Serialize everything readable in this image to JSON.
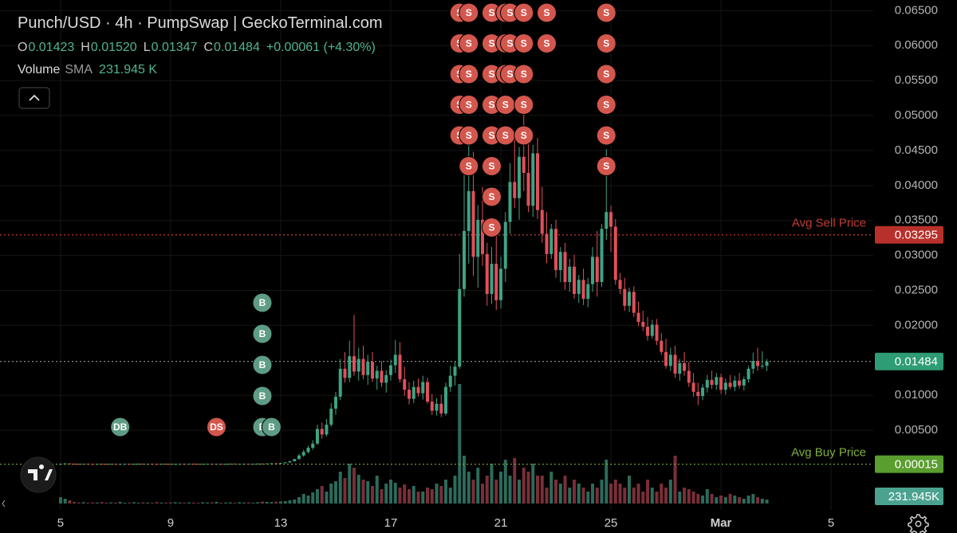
{
  "header": {
    "title": "Punch/USD · 4h · PumpSwap | GeckoTerminal.com",
    "ohlc": [
      {
        "key": "O",
        "value": "0.01423"
      },
      {
        "key": "H",
        "value": "0.01520"
      },
      {
        "key": "L",
        "value": "0.01347"
      },
      {
        "key": "C",
        "value": "0.01484"
      }
    ],
    "change": "+0.00061 (+4.30%)",
    "volume_name": "Volume",
    "sma_name": "SMA",
    "sma_value": "231.945 K"
  },
  "chart_data": {
    "type": "candlestick",
    "up_color": "#3fa384",
    "down_color": "#e0505a",
    "volume_up_color": "#2c6b5b",
    "volume_down_color": "#7a2f38",
    "grid": true,
    "xlim": [
      -13.2,
      177.2
    ],
    "xticks": [
      {
        "value": 0,
        "label": "5"
      },
      {
        "value": 24,
        "label": "9"
      },
      {
        "value": 48,
        "label": "13"
      },
      {
        "value": 72,
        "label": "17"
      },
      {
        "value": 96,
        "label": "21"
      },
      {
        "value": 120,
        "label": "25"
      },
      {
        "value": 144,
        "label": "Mar",
        "bold": true
      },
      {
        "value": 168,
        "label": "5"
      }
    ],
    "ylim": [
      -0.00638,
      0.06652
    ],
    "yticks": [
      {
        "value": 0.005,
        "label": "0.00500"
      },
      {
        "value": 0.01,
        "label": "0.01000"
      },
      {
        "value": 0.02,
        "label": "0.02000"
      },
      {
        "value": 0.025,
        "label": "0.02500"
      },
      {
        "value": 0.03,
        "label": "0.03000"
      },
      {
        "value": 0.035,
        "label": "0.03500"
      },
      {
        "value": 0.04,
        "label": "0.04000"
      },
      {
        "value": 0.045,
        "label": "0.04500"
      },
      {
        "value": 0.05,
        "label": "0.05000"
      },
      {
        "value": 0.055,
        "label": "0.05500"
      },
      {
        "value": 0.06,
        "label": "0.06000"
      },
      {
        "value": 0.065,
        "label": "0.06500"
      }
    ],
    "vlim": [
      0,
      16300000
    ],
    "volume_sma": 231945,
    "volume_sma_label": "231.945K",
    "volume_sma_color": "#4ba38f",
    "price_lines": [
      {
        "name": "Avg Sell Price",
        "value": 0.03295,
        "label": "0.03295",
        "color": "#c23a33",
        "badge_color": "#b8302b"
      },
      {
        "value": 0.01484,
        "label": "0.01484",
        "color": "#9a9a9a",
        "badge_color": "#2e9c74"
      },
      {
        "name": "Avg Buy Price",
        "value": 0.00015,
        "label": "0.00015",
        "color": "#7fb13a",
        "badge_color": "#5a9e2f"
      }
    ],
    "markers": [
      {
        "label": "DB",
        "index": 13,
        "count": 1,
        "stack": "bottom",
        "color": "#5e9c85"
      },
      {
        "label": "DS",
        "index": 34,
        "count": 1,
        "stack": "bottom",
        "color": "#d4574e"
      },
      {
        "label": "B",
        "index": 44,
        "count": 5,
        "stack": "bottom",
        "color": "#5e9c85"
      },
      {
        "label": "B",
        "index": 46,
        "count": 1,
        "stack": "bottom",
        "color": "#5e9c85"
      },
      {
        "label": "S",
        "index": 87,
        "count": 5,
        "stack": "top",
        "color": "#d4574e"
      },
      {
        "label": "S",
        "index": 89,
        "count": 6,
        "stack": "top",
        "color": "#d4574e"
      },
      {
        "label": "S",
        "index": 94,
        "count": 8,
        "stack": "top",
        "color": "#d4574e"
      },
      {
        "label": "S",
        "index": 97,
        "count": 5,
        "stack": "top",
        "color": "#d4574e"
      },
      {
        "label": "S",
        "index": 98,
        "count": 3,
        "stack": "top",
        "color": "#d4574e"
      },
      {
        "label": "S",
        "index": 101,
        "count": 5,
        "stack": "top",
        "color": "#d4574e"
      },
      {
        "label": "S",
        "index": 106,
        "count": 2,
        "stack": "top",
        "color": "#d4574e"
      },
      {
        "label": "S",
        "index": 119,
        "count": 6,
        "stack": "top",
        "color": "#d4574e"
      }
    ],
    "ohlc": [
      [
        0.00015,
        0.00024,
        0.00014,
        0.00021
      ],
      [
        0.00021,
        0.0003,
        0.00019,
        0.00026
      ],
      [
        0.00026,
        0.00028,
        0.0002,
        0.00022
      ],
      [
        0.00022,
        0.00025,
        0.00018,
        0.0002
      ],
      [
        0.0002,
        0.00023,
        0.00017,
        0.00019
      ],
      [
        0.00019,
        0.00022,
        0.00016,
        0.00021
      ],
      [
        0.00021,
        0.00024,
        0.00018,
        0.00019
      ],
      [
        0.00019,
        0.00021,
        0.00016,
        0.00018
      ],
      [
        0.00018,
        0.00022,
        0.00017,
        0.0002
      ],
      [
        0.0002,
        0.00023,
        0.00018,
        0.00019
      ],
      [
        0.00019,
        0.0002,
        0.00016,
        0.00017
      ],
      [
        0.00017,
        0.00021,
        0.00016,
        0.0002
      ],
      [
        0.0002,
        0.00022,
        0.00017,
        0.00018
      ],
      [
        0.00018,
        0.0002,
        0.00016,
        0.00019
      ],
      [
        0.00019,
        0.00023,
        0.00018,
        0.00021
      ],
      [
        0.00021,
        0.00022,
        0.00017,
        0.00018
      ],
      [
        0.00018,
        0.00021,
        0.00016,
        0.0002
      ],
      [
        0.0002,
        0.00024,
        0.00019,
        0.00022
      ],
      [
        0.00022,
        0.00023,
        0.00018,
        0.00019
      ],
      [
        0.00019,
        0.00022,
        0.00017,
        0.00021
      ],
      [
        0.00021,
        0.00022,
        0.00018,
        0.00019
      ],
      [
        0.00019,
        0.00021,
        0.00017,
        0.00018
      ],
      [
        0.00018,
        0.00022,
        0.00017,
        0.00021
      ],
      [
        0.00021,
        0.00023,
        0.00019,
        0.0002
      ],
      [
        0.0002,
        0.00021,
        0.00017,
        0.00018
      ],
      [
        0.00018,
        0.0002,
        0.00016,
        0.00019
      ],
      [
        0.00019,
        0.00022,
        0.00018,
        0.00021
      ],
      [
        0.00021,
        0.00022,
        0.00018,
        0.00019
      ],
      [
        0.00019,
        0.00023,
        0.00018,
        0.00022
      ],
      [
        0.00022,
        0.00024,
        0.00019,
        0.0002
      ],
      [
        0.0002,
        0.00021,
        0.00017,
        0.00018
      ],
      [
        0.00018,
        0.00021,
        0.00017,
        0.0002
      ],
      [
        0.0002,
        0.00023,
        0.00019,
        0.00022
      ],
      [
        0.00022,
        0.00023,
        0.00018,
        0.00019
      ],
      [
        0.00019,
        0.00022,
        0.00018,
        0.00021
      ],
      [
        0.00021,
        0.00022,
        0.00017,
        0.00018
      ],
      [
        0.00018,
        0.00021,
        0.00017,
        0.0002
      ],
      [
        0.0002,
        0.00024,
        0.00019,
        0.00023
      ],
      [
        0.00023,
        0.00024,
        0.00019,
        0.0002
      ],
      [
        0.0002,
        0.00022,
        0.00018,
        0.00021
      ],
      [
        0.00021,
        0.00023,
        0.00019,
        0.00022
      ],
      [
        0.00022,
        0.00023,
        0.00018,
        0.00019
      ],
      [
        0.00019,
        0.00022,
        0.00018,
        0.00021
      ],
      [
        0.00021,
        0.00025,
        0.0002,
        0.00024
      ],
      [
        0.00024,
        0.00026,
        0.0002,
        0.00022
      ],
      [
        0.00022,
        0.00027,
        0.00021,
        0.00026
      ],
      [
        0.00026,
        0.0003,
        0.00023,
        0.00028
      ],
      [
        0.00028,
        0.00031,
        0.00024,
        0.00025
      ],
      [
        0.00025,
        0.00034,
        0.00024,
        0.00032
      ],
      [
        0.00032,
        0.00045,
        0.0003,
        0.00041
      ],
      [
        0.00041,
        0.00062,
        0.00038,
        0.00058
      ],
      [
        0.00058,
        0.00095,
        0.00055,
        0.00088
      ],
      [
        0.00088,
        0.0016,
        0.00085,
        0.0014
      ],
      [
        0.0014,
        0.0022,
        0.0012,
        0.0019
      ],
      [
        0.0019,
        0.0028,
        0.0017,
        0.0025
      ],
      [
        0.0025,
        0.0036,
        0.0022,
        0.0031
      ],
      [
        0.0031,
        0.0058,
        0.0029,
        0.0052
      ],
      [
        0.0052,
        0.0061,
        0.0038,
        0.0044
      ],
      [
        0.0044,
        0.0066,
        0.0041,
        0.0058
      ],
      [
        0.0058,
        0.0089,
        0.0055,
        0.0081
      ],
      [
        0.0081,
        0.0105,
        0.0072,
        0.0098
      ],
      [
        0.0098,
        0.0152,
        0.0093,
        0.0138
      ],
      [
        0.0138,
        0.0162,
        0.0118,
        0.0125
      ],
      [
        0.0125,
        0.0178,
        0.0119,
        0.0156
      ],
      [
        0.0156,
        0.0215,
        0.0128,
        0.0134
      ],
      [
        0.0134,
        0.0168,
        0.0121,
        0.0152
      ],
      [
        0.0152,
        0.0171,
        0.0123,
        0.0129
      ],
      [
        0.0129,
        0.0158,
        0.0115,
        0.0148
      ],
      [
        0.0148,
        0.0162,
        0.0119,
        0.0124
      ],
      [
        0.0124,
        0.0142,
        0.0108,
        0.0135
      ],
      [
        0.0135,
        0.0149,
        0.0112,
        0.0118
      ],
      [
        0.0118,
        0.0136,
        0.0104,
        0.0129
      ],
      [
        0.0129,
        0.0151,
        0.0121,
        0.0143
      ],
      [
        0.0143,
        0.0179,
        0.0132,
        0.0158
      ],
      [
        0.0158,
        0.0176,
        0.0118,
        0.0123
      ],
      [
        0.0123,
        0.0141,
        0.0099,
        0.0108
      ],
      [
        0.0108,
        0.0119,
        0.0087,
        0.0095
      ],
      [
        0.0095,
        0.0121,
        0.0089,
        0.0112
      ],
      [
        0.0112,
        0.0124,
        0.0098,
        0.0103
      ],
      [
        0.0103,
        0.0128,
        0.0094,
        0.0119
      ],
      [
        0.0119,
        0.0125,
        0.0088,
        0.0091
      ],
      [
        0.0091,
        0.0102,
        0.0072,
        0.0078
      ],
      [
        0.0078,
        0.0096,
        0.0071,
        0.0088
      ],
      [
        0.0088,
        0.0101,
        0.0069,
        0.0074
      ],
      [
        0.0074,
        0.0118,
        0.0071,
        0.0112
      ],
      [
        0.0112,
        0.0142,
        0.0105,
        0.0128
      ],
      [
        0.0128,
        0.0148,
        0.0114,
        0.0141
      ],
      [
        0.0141,
        0.0302,
        0.0138,
        0.0252
      ],
      [
        0.0252,
        0.0415,
        0.0241,
        0.0335
      ],
      [
        0.0335,
        0.0462,
        0.0288,
        0.0392
      ],
      [
        0.0392,
        0.0448,
        0.0271,
        0.0298
      ],
      [
        0.0298,
        0.0372,
        0.0254,
        0.0351
      ],
      [
        0.0351,
        0.0398,
        0.0285,
        0.0302
      ],
      [
        0.0302,
        0.0318,
        0.0228,
        0.0245
      ],
      [
        0.0245,
        0.0312,
        0.0231,
        0.0288
      ],
      [
        0.0288,
        0.0335,
        0.0222,
        0.0236
      ],
      [
        0.0236,
        0.0298,
        0.0224,
        0.0281
      ],
      [
        0.0281,
        0.0362,
        0.0262,
        0.0348
      ],
      [
        0.0348,
        0.0432,
        0.0331,
        0.0405
      ],
      [
        0.0405,
        0.0468,
        0.0368,
        0.0382
      ],
      [
        0.0382,
        0.0455,
        0.0351,
        0.0441
      ],
      [
        0.0441,
        0.0502,
        0.0392,
        0.0418
      ],
      [
        0.0418,
        0.0475,
        0.0362,
        0.0371
      ],
      [
        0.0371,
        0.0458,
        0.0355,
        0.0446
      ],
      [
        0.0446,
        0.0468,
        0.0352,
        0.0365
      ],
      [
        0.0365,
        0.0398,
        0.0318,
        0.0331
      ],
      [
        0.0331,
        0.0362,
        0.0289,
        0.0302
      ],
      [
        0.0302,
        0.0345,
        0.0295,
        0.0338
      ],
      [
        0.0338,
        0.0351,
        0.0268,
        0.0279
      ],
      [
        0.0279,
        0.0312,
        0.0262,
        0.0305
      ],
      [
        0.0305,
        0.0318,
        0.0251,
        0.0262
      ],
      [
        0.0262,
        0.0295,
        0.0248,
        0.0284
      ],
      [
        0.0284,
        0.0301,
        0.0238,
        0.0245
      ],
      [
        0.0245,
        0.0272,
        0.0232,
        0.0265
      ],
      [
        0.0265,
        0.0281,
        0.0229,
        0.0238
      ],
      [
        0.0238,
        0.0268,
        0.0226,
        0.0259
      ],
      [
        0.0259,
        0.0312,
        0.0248,
        0.0298
      ],
      [
        0.0298,
        0.0335,
        0.0241,
        0.0262
      ],
      [
        0.0262,
        0.0345,
        0.0255,
        0.0338
      ],
      [
        0.0338,
        0.0452,
        0.0322,
        0.0362
      ],
      [
        0.0362,
        0.0371,
        0.0305,
        0.0341
      ],
      [
        0.0341,
        0.0352,
        0.0258,
        0.0265
      ],
      [
        0.0265,
        0.0275,
        0.0245,
        0.0252
      ],
      [
        0.0252,
        0.0268,
        0.0221,
        0.0228
      ],
      [
        0.0228,
        0.0254,
        0.0219,
        0.0248
      ],
      [
        0.0248,
        0.0256,
        0.0212,
        0.0218
      ],
      [
        0.0218,
        0.0234,
        0.0199,
        0.0205
      ],
      [
        0.0205,
        0.0221,
        0.0192,
        0.0198
      ],
      [
        0.0198,
        0.0212,
        0.0178,
        0.0185
      ],
      [
        0.0185,
        0.0208,
        0.0181,
        0.0201
      ],
      [
        0.0201,
        0.0209,
        0.0172,
        0.0178
      ],
      [
        0.0178,
        0.0189,
        0.0158,
        0.0162
      ],
      [
        0.0162,
        0.0181,
        0.0138,
        0.0142
      ],
      [
        0.0142,
        0.0168,
        0.0135,
        0.0158
      ],
      [
        0.0158,
        0.0171,
        0.0125,
        0.0131
      ],
      [
        0.0131,
        0.0152,
        0.0121,
        0.0146
      ],
      [
        0.0146,
        0.0162,
        0.0128,
        0.0135
      ],
      [
        0.0135,
        0.0148,
        0.0112,
        0.0118
      ],
      [
        0.0118,
        0.0132,
        0.0098,
        0.0105
      ],
      [
        0.0105,
        0.0118,
        0.0086,
        0.0099
      ],
      [
        0.0099,
        0.0116,
        0.0093,
        0.0111
      ],
      [
        0.0111,
        0.0129,
        0.0104,
        0.0122
      ],
      [
        0.0122,
        0.0135,
        0.0109,
        0.0115
      ],
      [
        0.0115,
        0.0132,
        0.0108,
        0.0126
      ],
      [
        0.0126,
        0.0131,
        0.0102,
        0.0108
      ],
      [
        0.0108,
        0.0124,
        0.0101,
        0.0118
      ],
      [
        0.0118,
        0.0129,
        0.0109,
        0.0112
      ],
      [
        0.0112,
        0.0128,
        0.0106,
        0.0121
      ],
      [
        0.0121,
        0.0132,
        0.011,
        0.0114
      ],
      [
        0.0114,
        0.0127,
        0.0107,
        0.0123
      ],
      [
        0.0123,
        0.0142,
        0.0118,
        0.0138
      ],
      [
        0.0138,
        0.0161,
        0.0131,
        0.0149
      ],
      [
        0.0149,
        0.0168,
        0.0135,
        0.0142
      ],
      [
        0.0142,
        0.0163,
        0.0138,
        0.01423
      ],
      [
        0.01423,
        0.0152,
        0.01347,
        0.01484
      ]
    ],
    "volume": [
      206000,
      155000,
      103000,
      52000,
      31000,
      41000,
      26000,
      36000,
      31000,
      46000,
      26000,
      36000,
      31000,
      52000,
      26000,
      31000,
      41000,
      26000,
      36000,
      31000,
      26000,
      46000,
      31000,
      26000,
      36000,
      41000,
      31000,
      26000,
      36000,
      31000,
      26000,
      41000,
      31000,
      36000,
      52000,
      26000,
      31000,
      36000,
      26000,
      41000,
      31000,
      36000,
      26000,
      41000,
      62000,
      52000,
      46000,
      57000,
      67000,
      77000,
      103000,
      129000,
      206000,
      310000,
      258000,
      361000,
      464000,
      568000,
      387000,
      645000,
      722000,
      1032000,
      826000,
      1290000,
      1161000,
      929000,
      774000,
      722000,
      568000,
      903000,
      464000,
      645000,
      774000,
      671000,
      516000,
      619000,
      464000,
      568000,
      387000,
      387000,
      516000,
      464000,
      645000,
      568000,
      774000,
      516000,
      903000,
      3870000,
      1548000,
      1032000,
      774000,
      1161000,
      645000,
      903000,
      1290000,
      774000,
      1032000,
      1419000,
      903000,
      1471000,
      774000,
      1161000,
      1032000,
      1290000,
      903000,
      903000,
      516000,
      1032000,
      774000,
      645000,
      903000,
      516000,
      774000,
      645000,
      516000,
      387000,
      645000,
      516000,
      774000,
      1419000,
      645000,
      774000,
      645000,
      516000,
      903000,
      516000,
      645000,
      387000,
      774000,
      516000,
      387000,
      645000,
      516000,
      774000,
      1548000,
      387000,
      516000,
      464000,
      387000,
      310000,
      258000,
      464000,
      310000,
      206000,
      258000,
      206000,
      310000,
      258000,
      206000,
      155000,
      258000,
      310000,
      206000,
      155000,
      129000
    ]
  }
}
